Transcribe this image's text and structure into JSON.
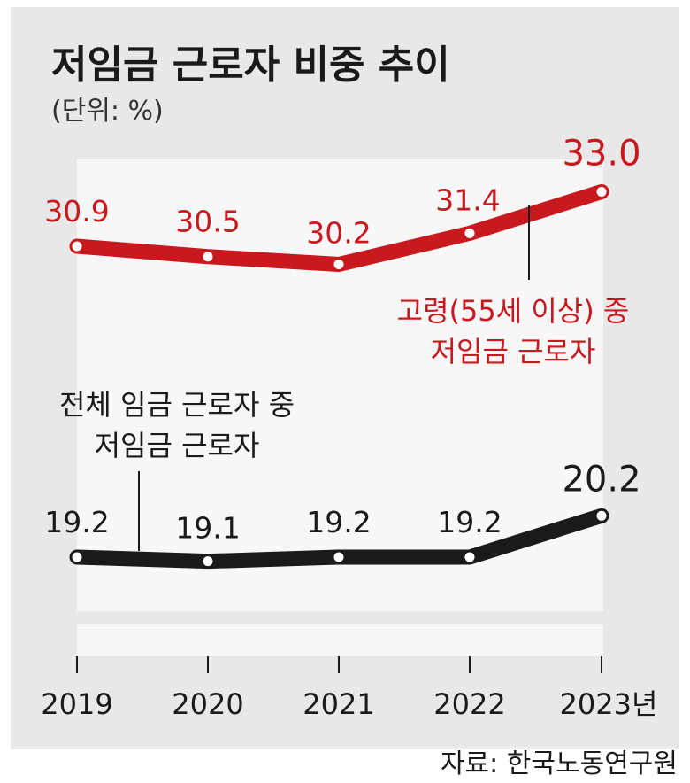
{
  "title": "저임금 근로자 비중 추이",
  "unit_label": "(단위: %)",
  "source": "자료: 한국노동연구원",
  "colors": {
    "elderly": "#c8191f",
    "total": "#1a1a1a",
    "panel": "#e8e8e8",
    "plot": "#f7f7f7"
  },
  "chart_data": {
    "type": "line",
    "title": "저임금 근로자 비중 추이",
    "ylabel": "(단위: %)",
    "x": [
      "2019",
      "2020",
      "2021",
      "2022",
      "2023년"
    ],
    "series": [
      {
        "name_lines": [
          "고령(55세 이상) 중",
          "저임금 근로자"
        ],
        "values": [
          30.9,
          30.5,
          30.2,
          31.4,
          33.0
        ],
        "labels": [
          "30.9",
          "30.5",
          "30.2",
          "31.4",
          "33.0"
        ],
        "color": "#c8191f"
      },
      {
        "name_lines": [
          "전체 임금 근로자 중",
          "저임금 근로자"
        ],
        "values": [
          19.2,
          19.1,
          19.2,
          19.2,
          20.2
        ],
        "labels": [
          "19.2",
          "19.1",
          "19.2",
          "19.2",
          "20.2"
        ],
        "color": "#1a1a1a"
      }
    ],
    "grid": false,
    "legend": "inline annotations"
  }
}
